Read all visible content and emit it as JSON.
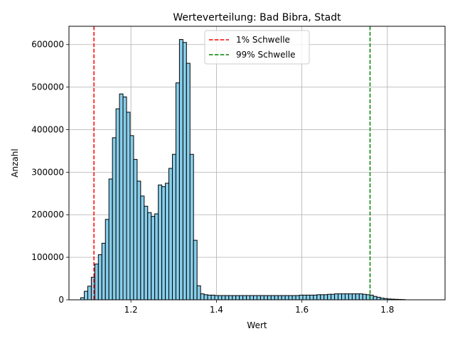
{
  "chart_data": {
    "type": "bar",
    "title": "Werteverteilung: Bad Bibra, Stadt",
    "xlabel": "Wert",
    "ylabel": "Anzahl",
    "xlim": [
      1.055,
      1.935
    ],
    "ylim": [
      0,
      643000
    ],
    "xticks": [
      1.2,
      1.4,
      1.6,
      1.8
    ],
    "xtick_labels": [
      "1.2",
      "1.4",
      "1.6",
      "1.8"
    ],
    "yticks": [
      0,
      100000,
      200000,
      300000,
      400000,
      500000,
      600000
    ],
    "ytick_labels": [
      "0",
      "100000",
      "200000",
      "300000",
      "400000",
      "500000",
      "600000"
    ],
    "grid": true,
    "legend_position": "top-center",
    "bar_fill": "#87ceeb",
    "bar_edge": "#000000",
    "bins": {
      "start": 1.0825,
      "width": 0.00825,
      "values": [
        5000,
        20000,
        32000,
        53000,
        84000,
        106000,
        133000,
        189000,
        284000,
        381000,
        449000,
        484000,
        477000,
        441000,
        386000,
        330000,
        279000,
        244000,
        220000,
        205000,
        196000,
        202000,
        270000,
        266000,
        274000,
        309000,
        342000,
        510000,
        612000,
        605000,
        556000,
        342000,
        140000,
        33000,
        14000,
        12000,
        11000,
        11000,
        10000,
        10000,
        10000,
        10000,
        10000,
        10000,
        10000,
        10000,
        10000,
        10000,
        10000,
        10000,
        10000,
        10000,
        10000,
        10000,
        10000,
        10000,
        10000,
        10000,
        10000,
        10000,
        10000,
        10000,
        11000,
        11000,
        11000,
        11000,
        11000,
        12000,
        12000,
        12000,
        13000,
        13000,
        14000,
        14000,
        14000,
        14000,
        14000,
        14000,
        14000,
        14000,
        13000,
        12000,
        11000,
        8000,
        6000,
        4000,
        3000,
        2000,
        1500,
        1200,
        900,
        600
      ]
    },
    "thresholds": [
      {
        "name": "1% Schwelle",
        "x": 1.1135,
        "color": "#ff0000"
      },
      {
        "name": "99% Schwelle",
        "x": 1.7595,
        "color": "#008000"
      }
    ]
  }
}
